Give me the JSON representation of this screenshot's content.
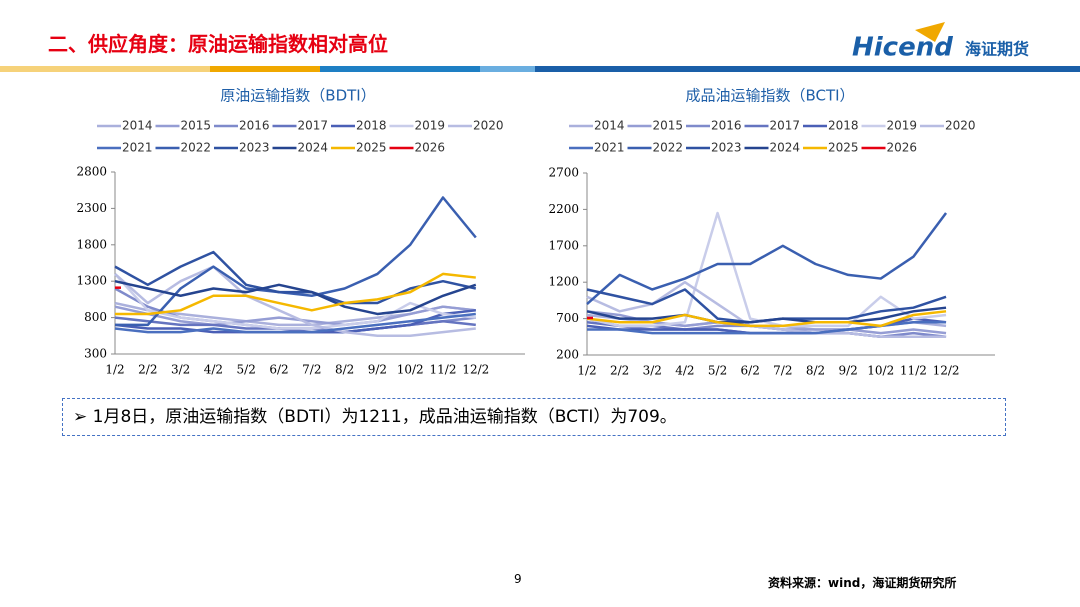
{
  "header": {
    "title": "二、供应角度：原油运输指数相对高位",
    "logo": "Hicend",
    "logo_cn": "海证期货"
  },
  "chart_data": [
    {
      "type": "line",
      "title": "原油运输指数（BDTI）",
      "categories": [
        "1/2",
        "2/2",
        "3/2",
        "4/2",
        "5/2",
        "6/2",
        "7/2",
        "8/2",
        "9/2",
        "10/2",
        "11/2",
        "12/2"
      ],
      "ylim": [
        300,
        2800
      ],
      "yticks": [
        300,
        800,
        1300,
        1800,
        2300,
        2800
      ],
      "series": [
        {
          "name": "2014",
          "color": "#aab0dc",
          "values": [
            1000,
            900,
            850,
            800,
            750,
            700,
            700,
            750,
            800,
            850,
            950,
            900
          ]
        },
        {
          "name": "2015",
          "color": "#959dd4",
          "values": [
            950,
            850,
            750,
            700,
            750,
            800,
            750,
            700,
            750,
            850,
            950,
            900
          ]
        },
        {
          "name": "2016",
          "color": "#7f8acb",
          "values": [
            1200,
            950,
            800,
            750,
            700,
            650,
            650,
            600,
            650,
            700,
            750,
            800
          ]
        },
        {
          "name": "2017",
          "color": "#6574c0",
          "values": [
            800,
            750,
            700,
            700,
            650,
            650,
            600,
            600,
            650,
            700,
            750,
            700
          ]
        },
        {
          "name": "2018",
          "color": "#4a5fb6",
          "values": [
            700,
            650,
            650,
            600,
            600,
            600,
            600,
            600,
            650,
            700,
            850,
            900
          ]
        },
        {
          "name": "2019",
          "color": "#c9cdea",
          "values": [
            1400,
            900,
            800,
            750,
            700,
            650,
            650,
            700,
            750,
            1000,
            850,
            800
          ]
        },
        {
          "name": "2020",
          "color": "#b7bce2",
          "values": [
            1400,
            1000,
            1300,
            1500,
            1100,
            900,
            700,
            600,
            550,
            550,
            600,
            650
          ]
        },
        {
          "name": "2021",
          "color": "#4a6fbf",
          "values": [
            650,
            600,
            600,
            650,
            600,
            600,
            600,
            650,
            700,
            750,
            800,
            850
          ]
        },
        {
          "name": "2022",
          "color": "#3a5fb0",
          "values": [
            700,
            700,
            1200,
            1500,
            1200,
            1150,
            1100,
            1200,
            1400,
            1800,
            2450,
            1900
          ]
        },
        {
          "name": "2023",
          "color": "#2f52a2",
          "values": [
            1500,
            1250,
            1500,
            1700,
            1250,
            1150,
            1150,
            1000,
            1000,
            1200,
            1300,
            1200
          ]
        },
        {
          "name": "2024",
          "color": "#25448f",
          "values": [
            1300,
            1200,
            1100,
            1200,
            1150,
            1250,
            1150,
            950,
            850,
            900,
            1100,
            1250
          ]
        },
        {
          "name": "2025",
          "color": "#f5b800",
          "values": [
            850,
            850,
            900,
            1100,
            1100,
            1000,
            900,
            1000,
            1050,
            1150,
            1400,
            1350
          ]
        },
        {
          "name": "2026",
          "color": "#e60012",
          "values": [
            1211,
            null,
            null,
            null,
            null,
            null,
            null,
            null,
            null,
            null,
            null,
            null
          ]
        }
      ]
    },
    {
      "type": "line",
      "title": "成品油运输指数（BCTI）",
      "categories": [
        "1/2",
        "2/2",
        "3/2",
        "4/2",
        "5/2",
        "6/2",
        "7/2",
        "8/2",
        "9/2",
        "10/2",
        "11/2",
        "12/2"
      ],
      "ylim": [
        200,
        2700
      ],
      "yticks": [
        200,
        700,
        1200,
        1700,
        2200,
        2700
      ],
      "series": [
        {
          "name": "2014",
          "color": "#aab0dc",
          "values": [
            750,
            700,
            650,
            600,
            650,
            600,
            600,
            550,
            550,
            600,
            650,
            600
          ]
        },
        {
          "name": "2015",
          "color": "#959dd4",
          "values": [
            800,
            750,
            650,
            600,
            650,
            600,
            550,
            550,
            550,
            500,
            550,
            500
          ]
        },
        {
          "name": "2016",
          "color": "#7f8acb",
          "values": [
            700,
            600,
            550,
            550,
            600,
            600,
            550,
            500,
            500,
            450,
            500,
            450
          ]
        },
        {
          "name": "2017",
          "color": "#6574c0",
          "values": [
            650,
            600,
            600,
            550,
            550,
            500,
            500,
            500,
            500,
            450,
            450,
            450
          ]
        },
        {
          "name": "2018",
          "color": "#4a5fb6",
          "values": [
            600,
            550,
            550,
            550,
            550,
            500,
            500,
            500,
            550,
            600,
            700,
            650
          ]
        },
        {
          "name": "2019",
          "color": "#c9cdea",
          "values": [
            700,
            600,
            600,
            650,
            2150,
            700,
            600,
            600,
            600,
            1000,
            700,
            750
          ]
        },
        {
          "name": "2020",
          "color": "#b7bce2",
          "values": [
            1000,
            800,
            900,
            1200,
            900,
            600,
            550,
            500,
            500,
            450,
            450,
            450
          ]
        },
        {
          "name": "2021",
          "color": "#4a6fbf",
          "values": [
            550,
            550,
            500,
            500,
            500,
            500,
            500,
            500,
            550,
            600,
            650,
            650
          ]
        },
        {
          "name": "2022",
          "color": "#3a5fb0",
          "values": [
            900,
            1300,
            1100,
            1250,
            1450,
            1450,
            1700,
            1450,
            1300,
            1250,
            1550,
            2150
          ]
        },
        {
          "name": "2023",
          "color": "#2f52a2",
          "values": [
            1100,
            1000,
            900,
            1100,
            700,
            650,
            700,
            700,
            700,
            800,
            850,
            1000
          ]
        },
        {
          "name": "2024",
          "color": "#25448f",
          "values": [
            800,
            700,
            700,
            750,
            650,
            650,
            700,
            650,
            650,
            700,
            800,
            850
          ]
        },
        {
          "name": "2025",
          "color": "#f5b800",
          "values": [
            700,
            650,
            650,
            750,
            650,
            600,
            600,
            650,
            650,
            600,
            750,
            800
          ]
        },
        {
          "name": "2026",
          "color": "#e60012",
          "values": [
            709,
            null,
            null,
            null,
            null,
            null,
            null,
            null,
            null,
            null,
            null,
            null
          ]
        }
      ]
    }
  ],
  "note": "1月8日，原油运输指数（BDTI）为1211，成品油运输指数（BCTI）为709。",
  "page_number": "9",
  "source": "资料来源：wind，海证期货研究所"
}
